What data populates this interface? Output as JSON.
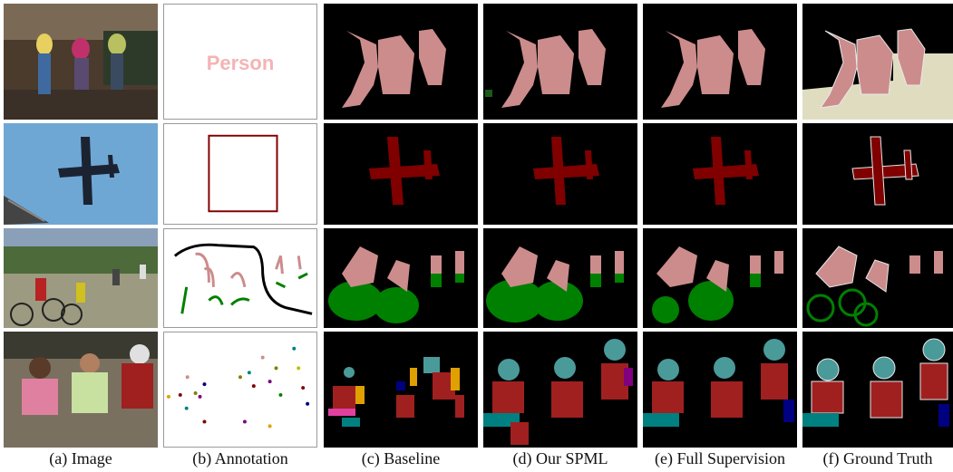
{
  "figure": {
    "captions": [
      "(a) Image",
      "(b) Annotation",
      "(c) Baseline",
      "(d) Our SPML",
      "(e) Full Supervision",
      "(f) Ground Truth"
    ],
    "annotation_label": "Person",
    "colors": {
      "person": "#cc8c8c",
      "aeroplane": "#800000",
      "bicycle": "#008000",
      "background": "#000000",
      "ground_truth_void": "#e0dcc0",
      "tag_text": "#f4b4b4"
    }
  }
}
